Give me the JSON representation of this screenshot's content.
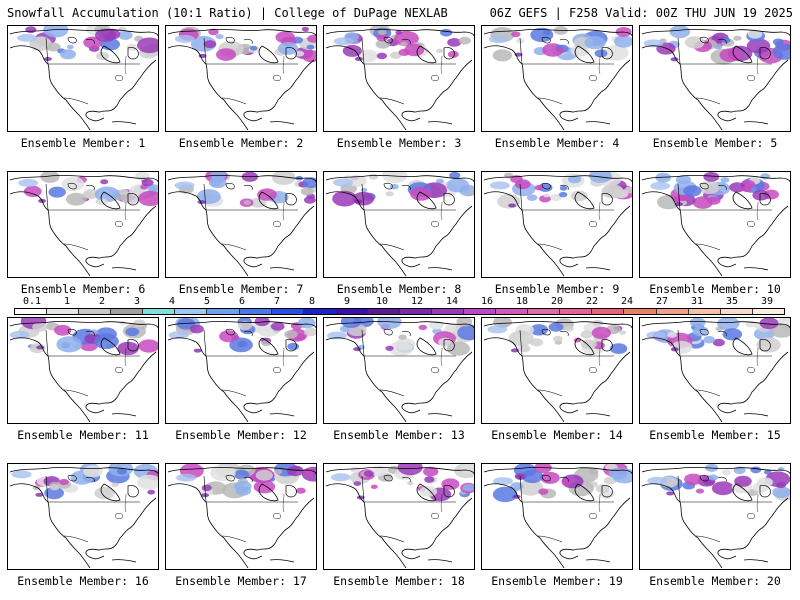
{
  "header": {
    "title": "Snowfall Accumulation (10:1 Ratio) | College of DuPage NEXLAB",
    "run_info": "06Z GEFS | F258 Valid: 00Z THU JUN 19 2025"
  },
  "panels": [
    {
      "label": "Ensemble Member: 1"
    },
    {
      "label": "Ensemble Member: 2"
    },
    {
      "label": "Ensemble Member: 3"
    },
    {
      "label": "Ensemble Member: 4"
    },
    {
      "label": "Ensemble Member: 5"
    },
    {
      "label": "Ensemble Member: 6"
    },
    {
      "label": "Ensemble Member: 7"
    },
    {
      "label": "Ensemble Member: 8"
    },
    {
      "label": "Ensemble Member: 9"
    },
    {
      "label": "Ensemble Member: 10"
    },
    {
      "label": "Ensemble Member: 11"
    },
    {
      "label": "Ensemble Member: 12"
    },
    {
      "label": "Ensemble Member: 13"
    },
    {
      "label": "Ensemble Member: 14"
    },
    {
      "label": "Ensemble Member: 15"
    },
    {
      "label": "Ensemble Member: 16"
    },
    {
      "label": "Ensemble Member: 17"
    },
    {
      "label": "Ensemble Member: 18"
    },
    {
      "label": "Ensemble Member: 19"
    },
    {
      "label": "Ensemble Member: 20"
    }
  ],
  "colorbar": {
    "labels": [
      "0.1",
      "1",
      "2",
      "3",
      "4",
      "5",
      "6",
      "7",
      "8",
      "9",
      "10",
      "12",
      "14",
      "16",
      "18",
      "20",
      "22",
      "24",
      "27",
      "31",
      "35",
      "39"
    ],
    "colors": [
      "#ffffff",
      "#e6e6e6",
      "#c8c8c8",
      "#a0a0a0",
      "#7fe0e0",
      "#9ec8f0",
      "#6fa0ec",
      "#4a78e6",
      "#2a4ee0",
      "#1a22c8",
      "#3a10a8",
      "#5a1a98",
      "#7a2aa8",
      "#9a3ab8",
      "#b84ac8",
      "#d05ab8",
      "#e06aa8",
      "#e8609a",
      "#e8607a",
      "#e8806a",
      "#f0a08a",
      "#f8c0a8",
      "#fbd8c8",
      "#fdeee4"
    ]
  }
}
